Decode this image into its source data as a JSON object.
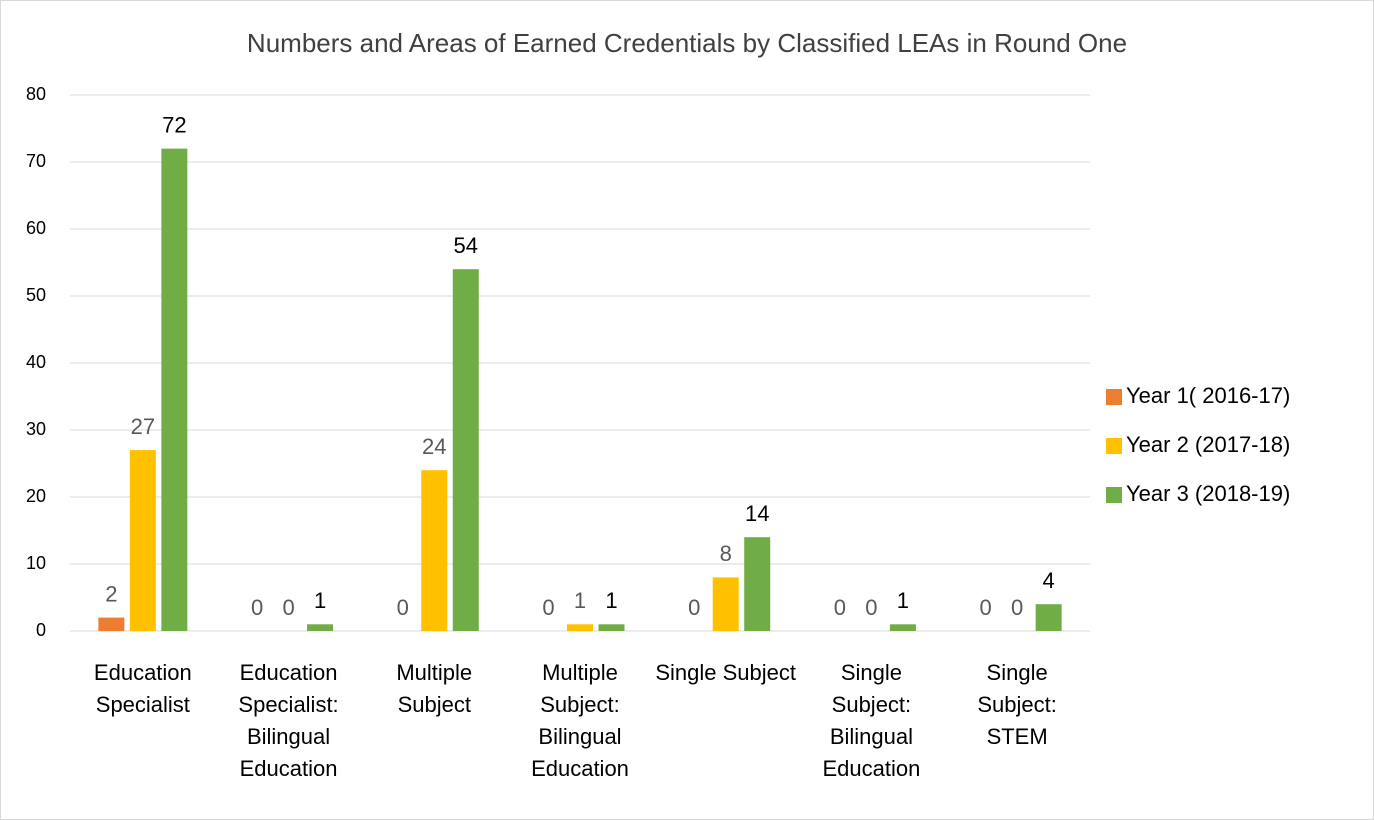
{
  "chart_data": {
    "type": "bar",
    "title": "Numbers and Areas of Earned Credentials by Classified LEAs in Round One",
    "categories": [
      "Education Specialist",
      "Education Specialist: Bilingual Education",
      "Multiple Subject",
      "Multiple Subject: Bilingual Education",
      "Single Subject",
      "Single Subject: Bilingual Education",
      "Single Subject: STEM"
    ],
    "series": [
      {
        "name": "Year 1( 2016-17)",
        "color": "#ed7d31",
        "label_color": "#595959",
        "values": [
          2,
          0,
          0,
          0,
          0,
          0,
          0
        ]
      },
      {
        "name": "Year 2 (2017-18)",
        "color": "#ffc000",
        "label_color": "#595959",
        "values": [
          27,
          0,
          24,
          1,
          8,
          0,
          0
        ]
      },
      {
        "name": "Year 3 (2018-19)",
        "color": "#70ad47",
        "label_color": "#000000",
        "values": [
          72,
          1,
          54,
          1,
          14,
          1,
          4
        ]
      }
    ],
    "ylim": [
      0,
      80
    ],
    "yticks": [
      0,
      10,
      20,
      30,
      40,
      50,
      60,
      70,
      80
    ],
    "grid": true,
    "legend": "right"
  }
}
